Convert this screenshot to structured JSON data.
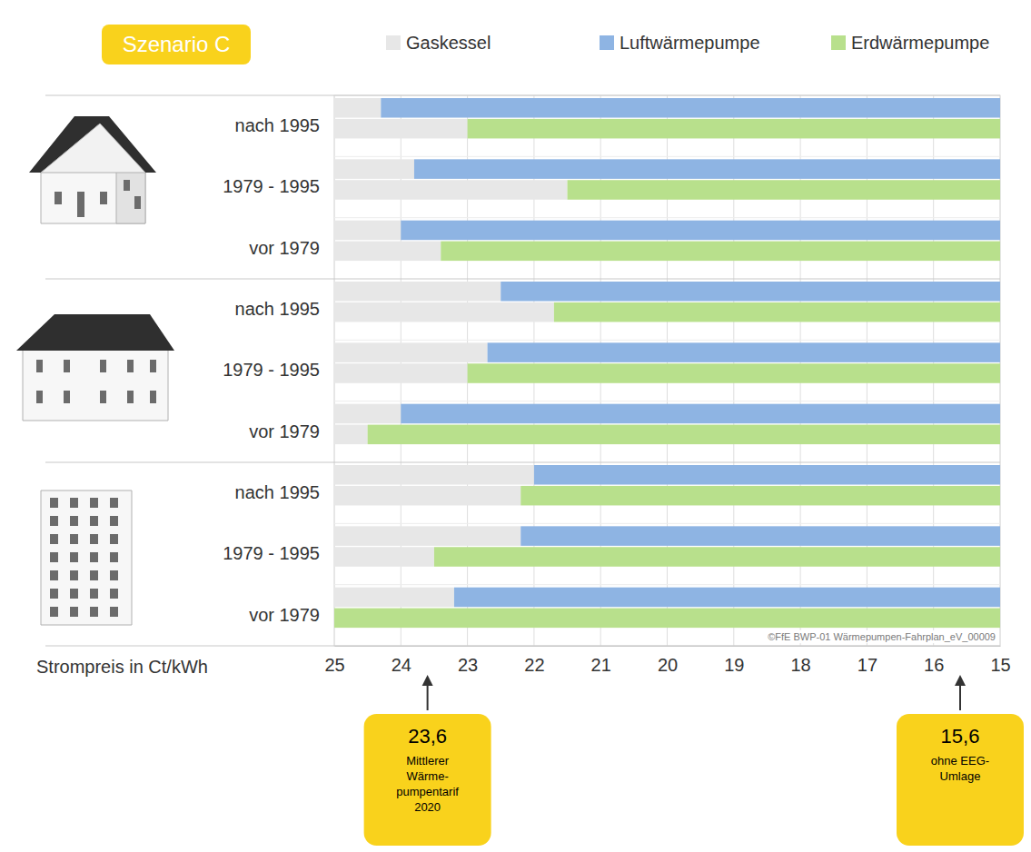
{
  "chart_data": {
    "type": "bar",
    "orientation": "horizontal",
    "title": "Szenario C",
    "x_label": "Strompreis in Ct/kWh",
    "categories": [
      "nach 1995",
      "1979 - 1995",
      "vor 1979",
      "nach 1995",
      "1979 - 1995",
      "vor 1979",
      "nach 1995",
      "1979 - 1995",
      "vor 1979"
    ],
    "series": [
      {
        "name": "Gaskessel",
        "color": "#e7e7e7"
      },
      {
        "name": "Luftwärmepumpe",
        "color": "#8eb4e3",
        "values": [
          24.3,
          23.8,
          24.0,
          22.5,
          22.7,
          24.0,
          22.0,
          22.2,
          23.2
        ]
      },
      {
        "name": "Erdwärmepumpe",
        "color": "#b8e08c",
        "values": [
          23.0,
          21.5,
          23.4,
          21.7,
          23.0,
          24.5,
          22.2,
          23.5,
          25.0
        ]
      }
    ],
    "xlim": [
      25,
      15
    ],
    "xticks": [
      25,
      24,
      23,
      22,
      21,
      20,
      19,
      18,
      17,
      16,
      15
    ],
    "grid": true,
    "legend": "top",
    "annotations": [
      {
        "x": 23.6,
        "label": "23,6",
        "lines": [
          "Mittlerer",
          "Wärme-",
          "pumpentarif",
          "2020"
        ]
      },
      {
        "x": 15.6,
        "label": "15,6",
        "lines": [
          "ohne EEG-",
          "Umlage"
        ]
      }
    ],
    "source": "©FfE BWP-01 Wärmepumpen-Fahrplan_eV_00009"
  }
}
